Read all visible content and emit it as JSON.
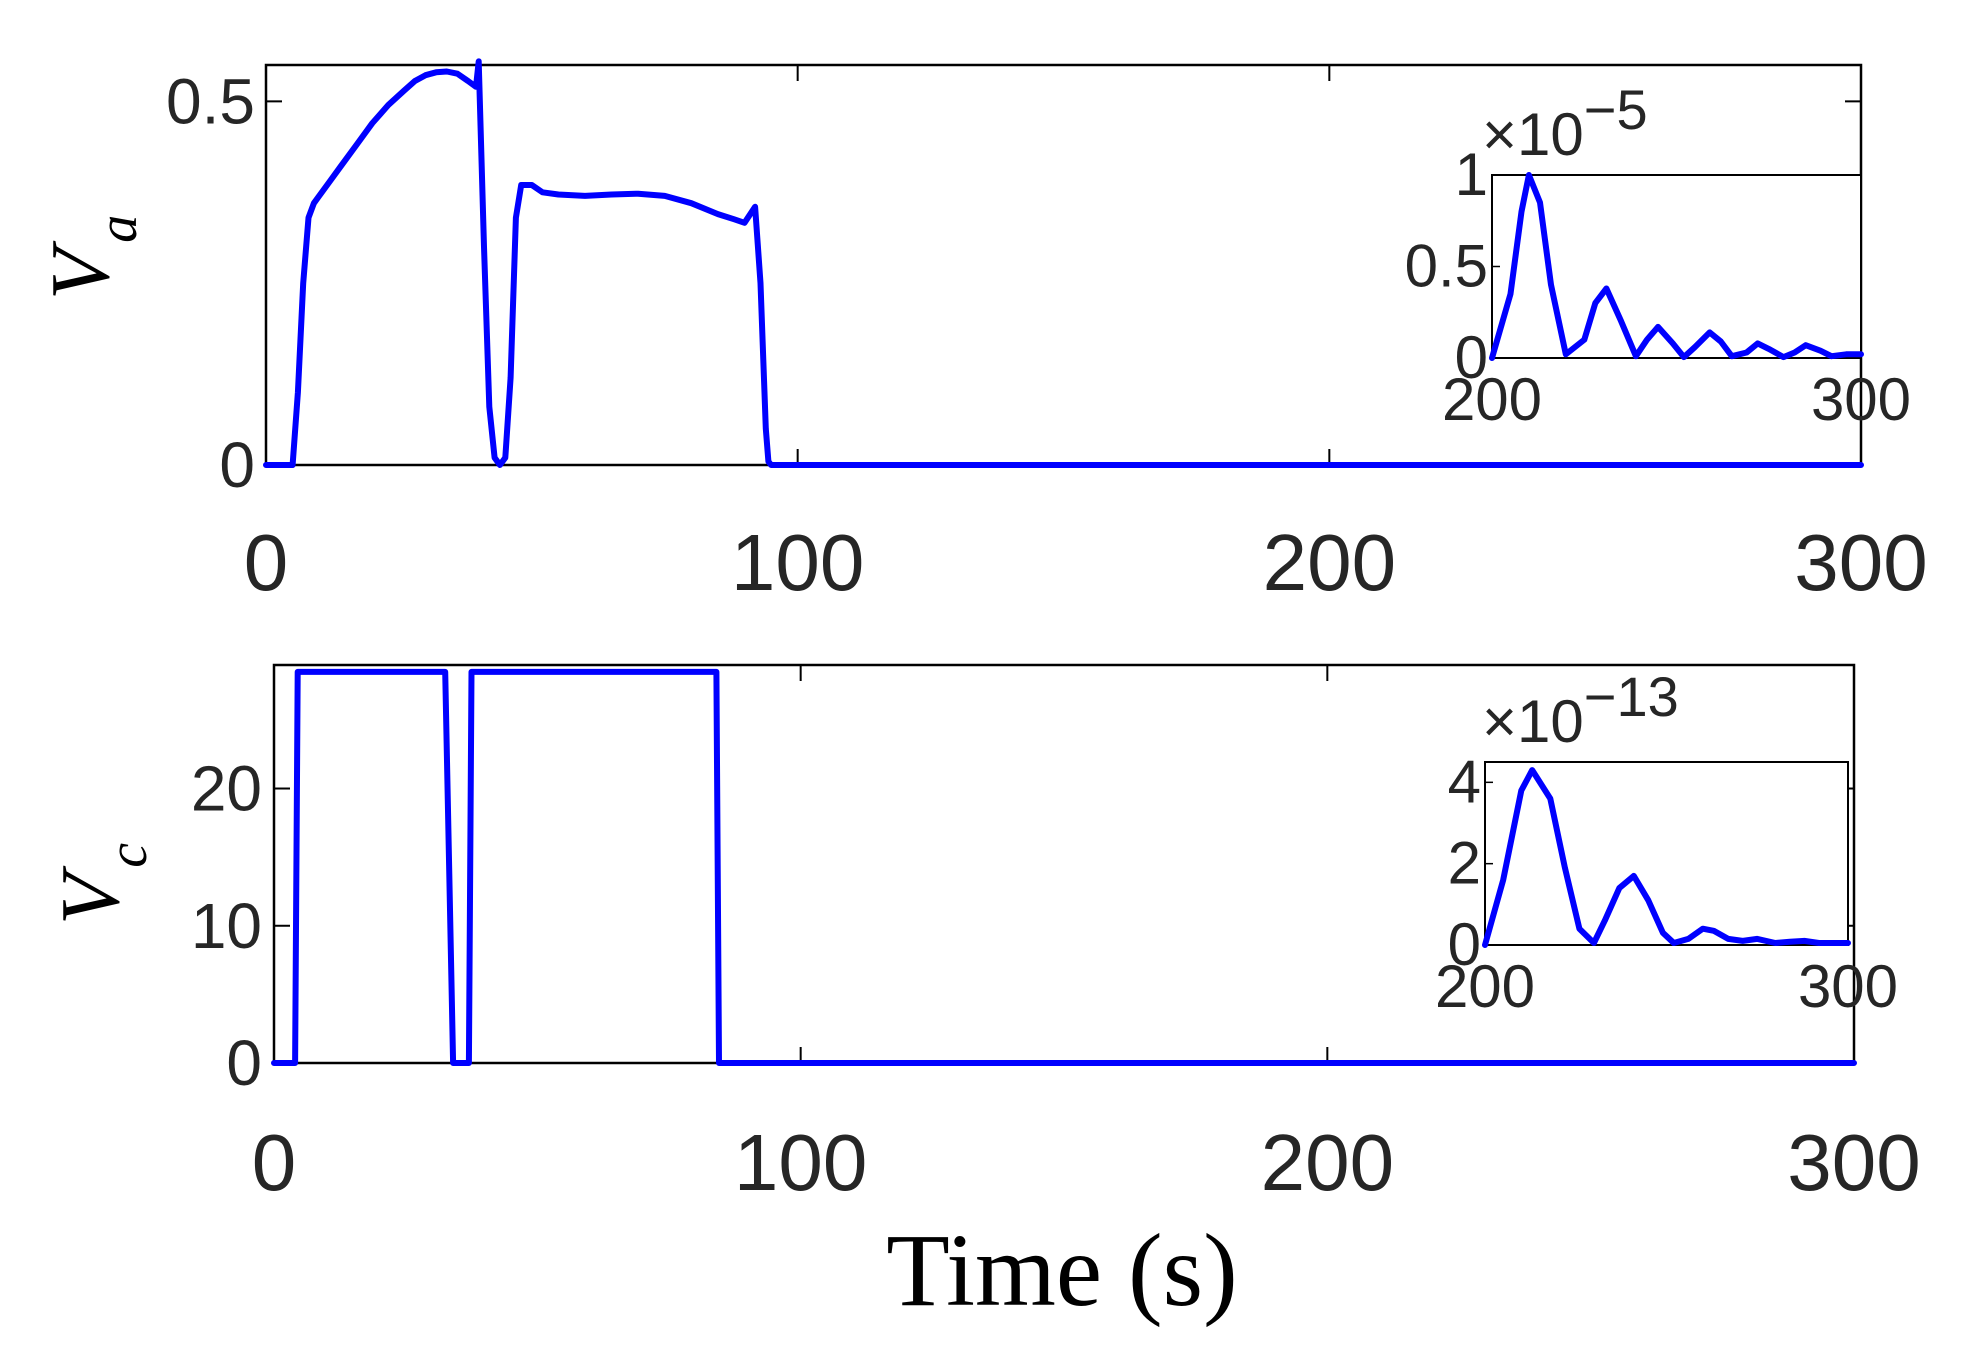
{
  "chart_data": [
    {
      "type": "line",
      "ylabel": "V",
      "ylabel_sub": "a",
      "xlim": [
        0,
        300
      ],
      "ylim": [
        0,
        0.55
      ],
      "xticks": [
        0,
        100,
        200,
        300
      ],
      "xtick_labels": [
        "0",
        "100",
        "200",
        "300"
      ],
      "yticks": [
        0,
        0.5
      ],
      "ytick_labels": [
        "0",
        "0.5"
      ],
      "grid": false,
      "color": "#0000ff",
      "series": [
        {
          "x": [
            0,
            5,
            6,
            7,
            8,
            9,
            10,
            12,
            14,
            17,
            20,
            23,
            26,
            28,
            30,
            32,
            34,
            36,
            38,
            39.5,
            40,
            41,
            42,
            43,
            44,
            45,
            46,
            47,
            48,
            50,
            52,
            55,
            60,
            65,
            70,
            75,
            80,
            85,
            88,
            90,
            92,
            93,
            94,
            94.5,
            95,
            97,
            100,
            150,
            200,
            250,
            300
          ],
          "y": [
            0,
            0,
            0.1,
            0.25,
            0.34,
            0.36,
            0.37,
            0.39,
            0.41,
            0.44,
            0.47,
            0.495,
            0.515,
            0.528,
            0.536,
            0.54,
            0.541,
            0.538,
            0.528,
            0.52,
            0.555,
            0.3,
            0.08,
            0.01,
            0.0,
            0.01,
            0.12,
            0.34,
            0.385,
            0.385,
            0.375,
            0.372,
            0.37,
            0.372,
            0.373,
            0.37,
            0.36,
            0.345,
            0.338,
            0.333,
            0.355,
            0.25,
            0.05,
            0.005,
            0,
            0,
            0,
            0,
            0,
            0,
            0
          ]
        }
      ],
      "inset": {
        "exponent_text": "×10",
        "exponent_power": "−5",
        "xlim": [
          200,
          300
        ],
        "ylim": [
          0,
          1.0
        ],
        "xticks": [
          200,
          300
        ],
        "xtick_labels": [
          "200",
          "300"
        ],
        "yticks": [
          0,
          0.5,
          1
        ],
        "ytick_labels": [
          "0",
          "0.5",
          "1"
        ],
        "x": [
          200,
          205,
          208,
          210,
          213,
          216,
          220,
          225,
          228,
          231,
          235,
          239,
          242,
          245,
          249,
          252,
          255,
          259,
          262,
          265,
          269,
          272,
          275,
          279,
          282,
          285,
          289,
          292,
          296,
          300
        ],
        "y": [
          0,
          0.35,
          0.8,
          1.0,
          0.85,
          0.4,
          0.02,
          0.1,
          0.3,
          0.38,
          0.2,
          0.01,
          0.1,
          0.17,
          0.08,
          0.005,
          0.06,
          0.14,
          0.09,
          0.01,
          0.03,
          0.08,
          0.05,
          0.005,
          0.03,
          0.07,
          0.04,
          0.01,
          0.02,
          0.02
        ]
      }
    },
    {
      "type": "line",
      "ylabel": "V",
      "ylabel_sub": "c",
      "xlabel": "Time (s)",
      "xlim": [
        0,
        300
      ],
      "ylim": [
        0,
        29
      ],
      "xticks": [
        0,
        100,
        200,
        300
      ],
      "xtick_labels": [
        "0",
        "100",
        "200",
        "300"
      ],
      "yticks": [
        0,
        10,
        20
      ],
      "ytick_labels": [
        "0",
        "10",
        "20"
      ],
      "grid": false,
      "color": "#0000ff",
      "series": [
        {
          "x": [
            0,
            4,
            4.5,
            32,
            32.5,
            34,
            36,
            37,
            37.5,
            84,
            84.5,
            90,
            150,
            200,
            250,
            300
          ],
          "y": [
            0,
            0,
            28.5,
            28.5,
            28.5,
            0,
            0,
            0,
            28.5,
            28.5,
            0,
            0,
            0,
            0,
            0,
            0
          ]
        }
      ],
      "inset": {
        "exponent_text": "×10",
        "exponent_power": "−13",
        "xlim": [
          200,
          300
        ],
        "ylim": [
          0,
          4.5
        ],
        "xticks": [
          200,
          300
        ],
        "xtick_labels": [
          "200",
          "300"
        ],
        "yticks": [
          0,
          2,
          4
        ],
        "ytick_labels": [
          "0",
          "2",
          "4"
        ],
        "x": [
          200,
          205,
          210,
          213,
          218,
          222,
          226,
          230,
          233,
          237,
          241,
          245,
          249,
          252,
          256,
          260,
          263,
          267,
          271,
          275,
          280,
          284,
          288,
          292,
          296,
          300
        ],
        "y": [
          0,
          1.6,
          3.8,
          4.3,
          3.6,
          1.9,
          0.4,
          0.05,
          0.6,
          1.4,
          1.7,
          1.1,
          0.3,
          0.05,
          0.15,
          0.4,
          0.35,
          0.15,
          0.1,
          0.15,
          0.05,
          0.08,
          0.1,
          0.05,
          0.05,
          0.05
        ]
      }
    }
  ]
}
